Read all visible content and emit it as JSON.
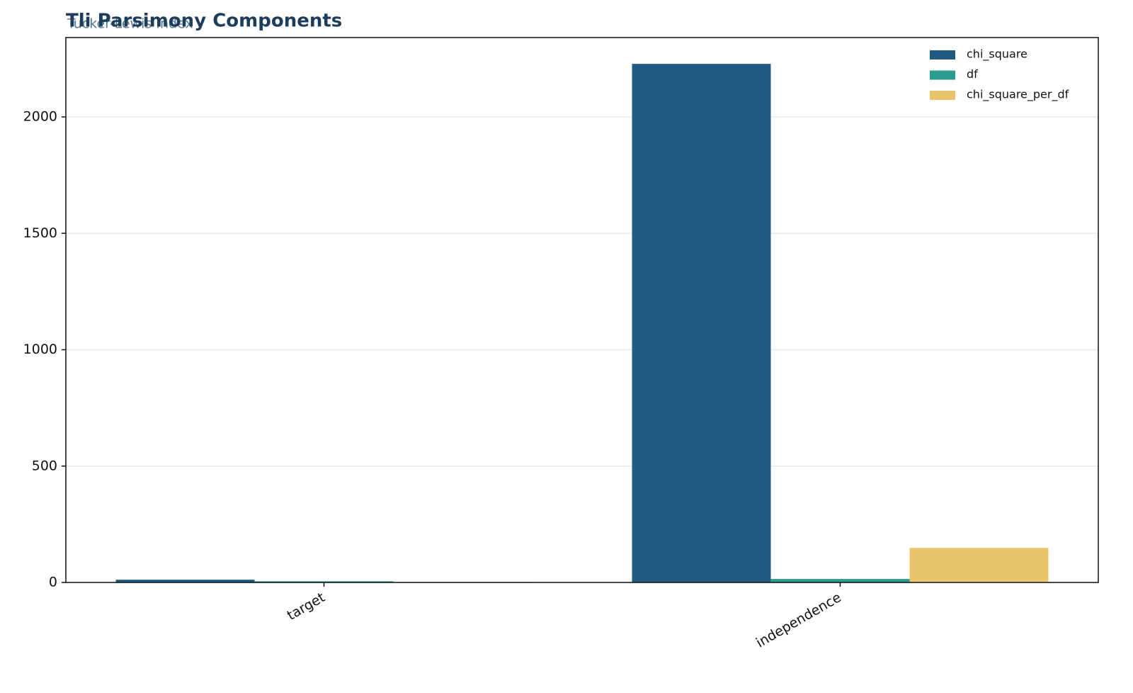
{
  "chart_data": {
    "type": "bar",
    "title": "Tli Parsimony Components",
    "subtitle": "Tucker-Lewis Index",
    "categories": [
      "target",
      "independence"
    ],
    "series": [
      {
        "name": "chi_square",
        "color": "#215b82",
        "values": [
          12,
          2228
        ]
      },
      {
        "name": "df",
        "color": "#2a9d8f",
        "values": [
          5,
          15
        ]
      },
      {
        "name": "chi_square_per_df",
        "color": "#e9c46a",
        "values": [
          2.4,
          148.5
        ]
      }
    ],
    "ylim": [
      0,
      2341
    ],
    "yticks": [
      0,
      500,
      1000,
      1500,
      2000
    ],
    "grid": true,
    "legend": "upper right"
  }
}
